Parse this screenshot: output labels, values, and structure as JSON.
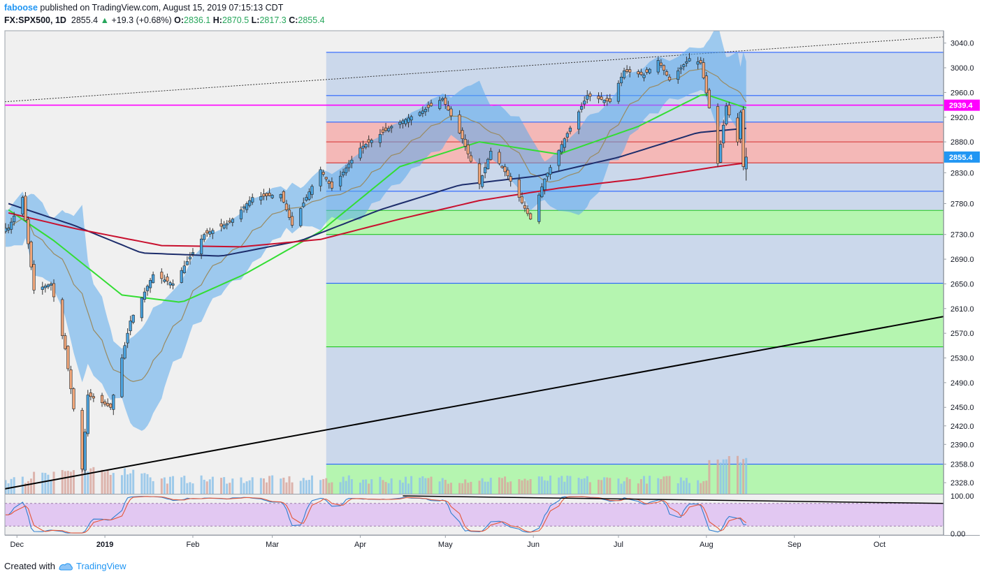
{
  "header": {
    "user": "faboose",
    "published_text": "published on TradingView.com, August 15, 2019 07:15:13 CDT",
    "symbol": "FX:SPX500, 1D",
    "last": "2855.4",
    "change": "+19.3 (+0.68%)",
    "o_label": "O:",
    "o": "2836.1",
    "h_label": "H:",
    "h": "2870.5",
    "l_label": "L:",
    "l": "2817.3",
    "c_label": "C:",
    "c": "2855.4"
  },
  "footer": {
    "created_with": "Created with",
    "brand": "TradingView"
  },
  "colors": {
    "up": "#4aa3df",
    "down": "#f0a67a",
    "wick": "#333333",
    "ma_red": "#c8102e",
    "ma_navy": "#1d2d6b",
    "ma_green": "#33dd33",
    "band": "#5aa9ec",
    "magenta": "#ff00ff",
    "blue_line": "#2962ff",
    "zone_blue": "#c7d5ea",
    "zone_red": "#f4b1b0",
    "zone_green": "#aef5a8",
    "stoch_bg": "#e2c8f2"
  },
  "chart_data": {
    "type": "candlestick",
    "title": "FX:SPX500, 1D",
    "ylim": [
      2310,
      3060
    ],
    "y_ticks": [
      "3040.0",
      "3000.0",
      "2960.0",
      "2920.0",
      "2880.0",
      "2830.0",
      "2780.0",
      "2730.0",
      "2690.0",
      "2650.0",
      "2610.0",
      "2570.0",
      "2530.0",
      "2490.0",
      "2450.0",
      "2420.0",
      "2390.0",
      "2358.0",
      "2328.0"
    ],
    "x_labels": [
      "Dec",
      "2019",
      "Feb",
      "Mar",
      "Apr",
      "May",
      "Jun",
      "Jul",
      "Aug",
      "Sep",
      "Oct"
    ],
    "price_markers": [
      {
        "label": "2939.4",
        "value": 2939.4,
        "color": "#ff00ff"
      },
      {
        "label": "2855.4",
        "value": 2855.4,
        "color": "#2196f3"
      }
    ],
    "horizontal_levels": [
      {
        "value": 3025,
        "color": "#2962ff"
      },
      {
        "value": 2955,
        "color": "#2962ff"
      },
      {
        "value": 2939.4,
        "color": "#ff00ff"
      },
      {
        "value": 2912,
        "color": "#2962ff"
      },
      {
        "value": 2880,
        "color": "#d32f2f"
      },
      {
        "value": 2846,
        "color": "#d32f2f"
      },
      {
        "value": 2800,
        "color": "#2962ff"
      },
      {
        "value": 2769,
        "color": "#22c522"
      },
      {
        "value": 2730,
        "color": "#22c522"
      },
      {
        "value": 2651,
        "color": "#2962ff"
      },
      {
        "value": 2548,
        "color": "#22c522"
      },
      {
        "value": 2358,
        "color": "#2962ff"
      }
    ],
    "zones": [
      {
        "y1": 3025,
        "y2": 2912,
        "color": "#c7d5ea"
      },
      {
        "y1": 2912,
        "y2": 2846,
        "color": "#f4b1b0"
      },
      {
        "y1": 2846,
        "y2": 2769,
        "color": "#c7d5ea"
      },
      {
        "y1": 2769,
        "y2": 2730,
        "color": "#aef5a8"
      },
      {
        "y1": 2730,
        "y2": 2651,
        "color": "#c7d5ea"
      },
      {
        "y1": 2651,
        "y2": 2548,
        "color": "#aef5a8"
      },
      {
        "y1": 2548,
        "y2": 2358,
        "color": "#c7d5ea"
      },
      {
        "y1": 2358,
        "y2": 2310,
        "color": "#aef5a8"
      }
    ],
    "anchors": [
      [
        "2018-11-28",
        2740
      ],
      [
        "2018-12-03",
        2790
      ],
      [
        "2018-12-07",
        2640
      ],
      [
        "2018-12-13",
        2650
      ],
      [
        "2018-12-18",
        2545
      ],
      [
        "2018-12-24",
        2350
      ],
      [
        "2018-12-26",
        2470
      ],
      [
        "2019-01-03",
        2450
      ],
      [
        "2019-01-10",
        2590
      ],
      [
        "2019-01-18",
        2665
      ],
      [
        "2019-01-25",
        2650
      ],
      [
        "2019-02-05",
        2730
      ],
      [
        "2019-02-14",
        2750
      ],
      [
        "2019-02-22",
        2790
      ],
      [
        "2019-03-04",
        2795
      ],
      [
        "2019-03-08",
        2745
      ],
      [
        "2019-03-18",
        2835
      ],
      [
        "2019-03-22",
        2805
      ],
      [
        "2019-04-01",
        2870
      ],
      [
        "2019-04-12",
        2905
      ],
      [
        "2019-04-23",
        2930
      ],
      [
        "2019-04-30",
        2950
      ],
      [
        "2019-05-07",
        2885
      ],
      [
        "2019-05-13",
        2812
      ],
      [
        "2019-05-17",
        2865
      ],
      [
        "2019-05-23",
        2825
      ],
      [
        "2019-05-31",
        2755
      ],
      [
        "2019-06-05",
        2820
      ],
      [
        "2019-06-12",
        2885
      ],
      [
        "2019-06-20",
        2955
      ],
      [
        "2019-06-28",
        2945
      ],
      [
        "2019-07-03",
        2995
      ],
      [
        "2019-07-10",
        2988
      ],
      [
        "2019-07-15",
        3012
      ],
      [
        "2019-07-19",
        2980
      ],
      [
        "2019-07-26",
        3015
      ],
      [
        "2019-07-30",
        3008
      ],
      [
        "2019-08-02",
        2935
      ],
      [
        "2019-08-05",
        2845
      ],
      [
        "2019-08-08",
        2938
      ],
      [
        "2019-08-12",
        2880
      ],
      [
        "2019-08-13",
        2928
      ],
      [
        "2019-08-14",
        2840
      ],
      [
        "2019-08-15",
        2855
      ]
    ],
    "sma200": [
      [
        "2018-11-28",
        2765
      ],
      [
        "2018-12-21",
        2740
      ],
      [
        "2019-01-21",
        2712
      ],
      [
        "2019-02-18",
        2710
      ],
      [
        "2019-03-18",
        2722
      ],
      [
        "2019-04-15",
        2755
      ],
      [
        "2019-05-13",
        2785
      ],
      [
        "2019-06-10",
        2805
      ],
      [
        "2019-07-08",
        2820
      ],
      [
        "2019-08-05",
        2840
      ],
      [
        "2019-08-15",
        2846
      ]
    ],
    "sma100": [
      [
        "2018-11-28",
        2780
      ],
      [
        "2018-12-21",
        2745
      ],
      [
        "2019-01-14",
        2700
      ],
      [
        "2019-02-11",
        2695
      ],
      [
        "2019-03-11",
        2720
      ],
      [
        "2019-04-08",
        2770
      ],
      [
        "2019-05-06",
        2810
      ],
      [
        "2019-06-03",
        2825
      ],
      [
        "2019-07-01",
        2855
      ],
      [
        "2019-07-29",
        2895
      ],
      [
        "2019-08-15",
        2902
      ]
    ],
    "sma50": [
      [
        "2018-11-28",
        2770
      ],
      [
        "2018-12-14",
        2720
      ],
      [
        "2019-01-07",
        2632
      ],
      [
        "2019-01-28",
        2620
      ],
      [
        "2019-02-19",
        2665
      ],
      [
        "2019-03-18",
        2735
      ],
      [
        "2019-04-15",
        2840
      ],
      [
        "2019-05-13",
        2880
      ],
      [
        "2019-06-10",
        2860
      ],
      [
        "2019-07-08",
        2905
      ],
      [
        "2019-07-31",
        2958
      ],
      [
        "2019-08-15",
        2935
      ]
    ],
    "volume": {
      "ylim": [
        0,
        100
      ]
    },
    "stochastic": {
      "ylim": [
        0,
        100
      ],
      "ticks": [
        "100.00",
        "0.00"
      ],
      "band": [
        20,
        80
      ]
    }
  }
}
